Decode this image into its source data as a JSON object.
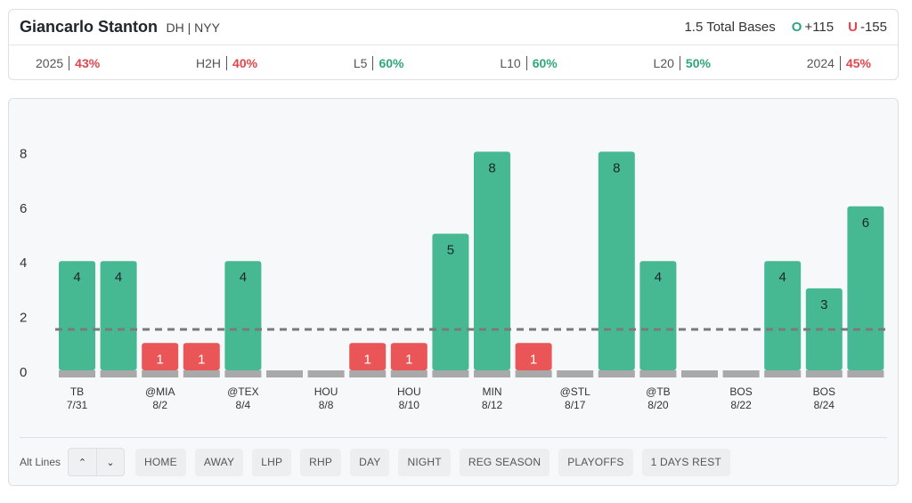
{
  "header": {
    "player_name": "Giancarlo Stanton",
    "player_meta": "DH | NYY",
    "prop": "1.5 Total Bases",
    "over_letter": "O",
    "over_odds": "+115",
    "under_letter": "U",
    "under_odds": "-155"
  },
  "stats": [
    {
      "label": "2025",
      "value": "43%",
      "color": "#e0464c"
    },
    {
      "label": "H2H",
      "value": "40%",
      "color": "#e0464c"
    },
    {
      "label": "L5",
      "value": "60%",
      "color": "#2fa67c"
    },
    {
      "label": "L10",
      "value": "60%",
      "color": "#2fa67c"
    },
    {
      "label": "L20",
      "value": "50%",
      "color": "#2fa67c"
    },
    {
      "label": "2024",
      "value": "45%",
      "color": "#e0464c"
    }
  ],
  "chart_data": {
    "type": "bar",
    "ylim": [
      0,
      9
    ],
    "yticks": [
      0,
      2,
      4,
      6,
      8
    ],
    "line": 1.5,
    "grid": false,
    "colors": {
      "over": "#46b993",
      "under": "#ea5658",
      "base": "#a9a9a9",
      "line": "#7a7a7a"
    },
    "games": [
      {
        "value": 4,
        "opp": "TB",
        "date": "7/31"
      },
      {
        "value": 4,
        "opp": "",
        "date": ""
      },
      {
        "value": 1,
        "opp": "@MIA",
        "date": "8/2"
      },
      {
        "value": 1,
        "opp": "",
        "date": ""
      },
      {
        "value": 4,
        "opp": "@TEX",
        "date": "8/4"
      },
      {
        "value": 0,
        "opp": "",
        "date": ""
      },
      {
        "value": 0,
        "opp": "HOU",
        "date": "8/8"
      },
      {
        "value": 1,
        "opp": "",
        "date": ""
      },
      {
        "value": 1,
        "opp": "HOU",
        "date": "8/10"
      },
      {
        "value": 5,
        "opp": "",
        "date": ""
      },
      {
        "value": 8,
        "opp": "MIN",
        "date": "8/12"
      },
      {
        "value": 1,
        "opp": "",
        "date": ""
      },
      {
        "value": 0,
        "opp": "@STL",
        "date": "8/17"
      },
      {
        "value": 8,
        "opp": "",
        "date": ""
      },
      {
        "value": 4,
        "opp": "@TB",
        "date": "8/20"
      },
      {
        "value": 0,
        "opp": "",
        "date": ""
      },
      {
        "value": 0,
        "opp": "BOS",
        "date": "8/22"
      },
      {
        "value": 4,
        "opp": "",
        "date": ""
      },
      {
        "value": 3,
        "opp": "BOS",
        "date": "8/24"
      },
      {
        "value": 6,
        "opp": "",
        "date": ""
      }
    ]
  },
  "controls": {
    "alt_lines_label": "Alt Lines",
    "up_icon": "chevron-up-icon",
    "down_icon": "chevron-down-icon",
    "up_glyph": "⌃",
    "down_glyph": "⌄",
    "filters": [
      "HOME",
      "AWAY",
      "LHP",
      "RHP",
      "DAY",
      "NIGHT",
      "REG SEASON",
      "PLAYOFFS",
      "1 DAYS REST"
    ]
  }
}
